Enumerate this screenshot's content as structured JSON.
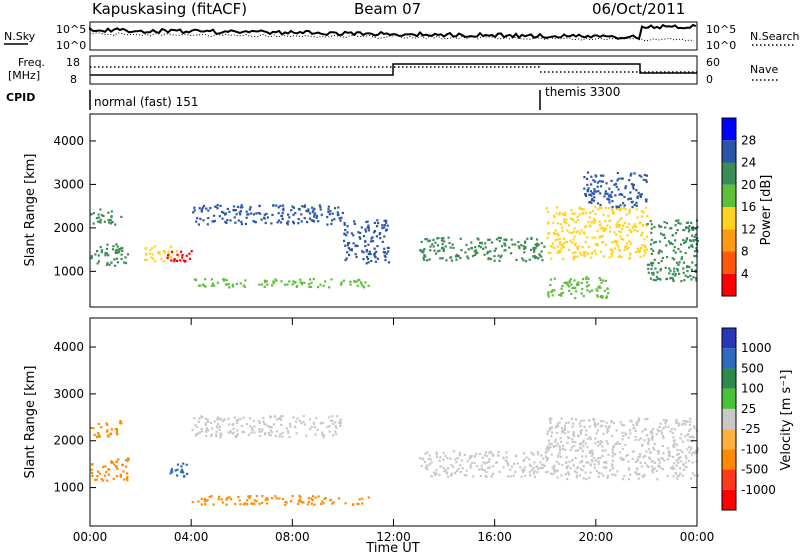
{
  "header": {
    "station": "Kapuskasing (fitACF)",
    "beam": "Beam 07",
    "date": "06/Oct/2011"
  },
  "strip_labels": {
    "nsky": "N.Sky",
    "nsearch": "N.Search",
    "freq_l1": "Freq.",
    "freq_l2": "[MHz]",
    "nave": "Nave",
    "cpid": "CPID",
    "noise_tick_hi": "10^5",
    "noise_tick_lo": "10^0",
    "freq_tick_hi": "18",
    "freq_tick_lo": "8",
    "nave_tick_hi": "60",
    "nave_tick_lo": "0"
  },
  "cpid": {
    "mode1": "normal (fast) 151",
    "mode2": "themis 3300",
    "switch_time_h": 18
  },
  "colors": {
    "power_scale": [
      "#0000ff",
      "#2a55a8",
      "#3c8c55",
      "#5fbf3a",
      "#ffd21e",
      "#ff9a14",
      "#ff5a0a",
      "#ff0000"
    ],
    "velocity_scale": [
      "#2a36b8",
      "#2f6ac2",
      "#2e8a4a",
      "#47c33a",
      "#c8c8c8",
      "#ffb040",
      "#ff8a00",
      "#ff3a1a",
      "#ff0000"
    ],
    "ground_scatter": "#c8c8c8"
  },
  "chart_data": [
    {
      "type": "heatmap",
      "title": "Power",
      "xlabel": "Time UT",
      "ylabel": "Slant Range [km]",
      "xlim": [
        0,
        24
      ],
      "ylim": [
        180,
        4620
      ],
      "x_ticks": [
        "00:00",
        "04:00",
        "08:00",
        "12:00",
        "16:00",
        "20:00",
        "00:00"
      ],
      "y_ticks": [
        1000,
        2000,
        3000,
        4000
      ],
      "colorbar_label": "Power [dB]",
      "colorbar_ticks": [
        "28",
        "24",
        "20",
        "16",
        "12",
        "8",
        "4"
      ],
      "features": [
        {
          "t": [
            0.0,
            1.5
          ],
          "r": [
            1150,
            1650
          ],
          "level": 2
        },
        {
          "t": [
            0.0,
            1.2
          ],
          "r": [
            2100,
            2450
          ],
          "level": 2
        },
        {
          "t": [
            2.0,
            3.5
          ],
          "r": [
            1250,
            1600
          ],
          "level": 4
        },
        {
          "t": [
            3.0,
            4.0
          ],
          "r": [
            1250,
            1500
          ],
          "level": 7
        },
        {
          "t": [
            4.0,
            10.0
          ],
          "r": [
            2100,
            2550
          ],
          "level": 1
        },
        {
          "t": [
            10.0,
            11.8
          ],
          "r": [
            1200,
            2200
          ],
          "level": 1
        },
        {
          "t": [
            4.0,
            11.0
          ],
          "r": [
            650,
            850
          ],
          "level": 3
        },
        {
          "t": [
            13.0,
            18.0
          ],
          "r": [
            1250,
            1800
          ],
          "level": 2
        },
        {
          "t": [
            18.0,
            22.0
          ],
          "r": [
            1300,
            2500
          ],
          "level": 4
        },
        {
          "t": [
            19.5,
            22.0
          ],
          "r": [
            2500,
            3300
          ],
          "level": 1
        },
        {
          "t": [
            22.0,
            24.0
          ],
          "r": [
            800,
            2200
          ],
          "level": 2
        },
        {
          "t": [
            18.0,
            20.5
          ],
          "r": [
            400,
            900
          ],
          "level": 3
        }
      ]
    },
    {
      "type": "heatmap",
      "title": "Velocity",
      "xlabel": "Time UT",
      "ylabel": "Slant Range [km]",
      "xlim": [
        0,
        24
      ],
      "ylim": [
        180,
        4620
      ],
      "x_ticks": [
        "00:00",
        "04:00",
        "08:00",
        "12:00",
        "16:00",
        "20:00",
        "00:00"
      ],
      "y_ticks": [
        1000,
        2000,
        3000,
        4000
      ],
      "colorbar_label": "Velocity [m s⁻¹]",
      "colorbar_ticks": [
        "1000",
        "500",
        "100",
        "25",
        "-25",
        "-100",
        "-500",
        "-1000"
      ],
      "features": [
        {
          "t": [
            0.0,
            1.5
          ],
          "r": [
            1150,
            1650
          ],
          "velocity": -100
        },
        {
          "t": [
            0.0,
            1.2
          ],
          "r": [
            2100,
            2450
          ],
          "velocity": -100
        },
        {
          "t": [
            3.0,
            4.0
          ],
          "r": [
            1250,
            1550
          ],
          "velocity": 100
        },
        {
          "t": [
            4.0,
            10.0
          ],
          "r": [
            2100,
            2550
          ],
          "velocity": 0
        },
        {
          "t": [
            4.0,
            11.0
          ],
          "r": [
            650,
            850
          ],
          "velocity": -100
        },
        {
          "t": [
            13.0,
            18.0
          ],
          "r": [
            1250,
            1800
          ],
          "velocity": 0
        },
        {
          "t": [
            18.0,
            24.0
          ],
          "r": [
            1200,
            2500
          ],
          "velocity": 0
        }
      ]
    }
  ]
}
